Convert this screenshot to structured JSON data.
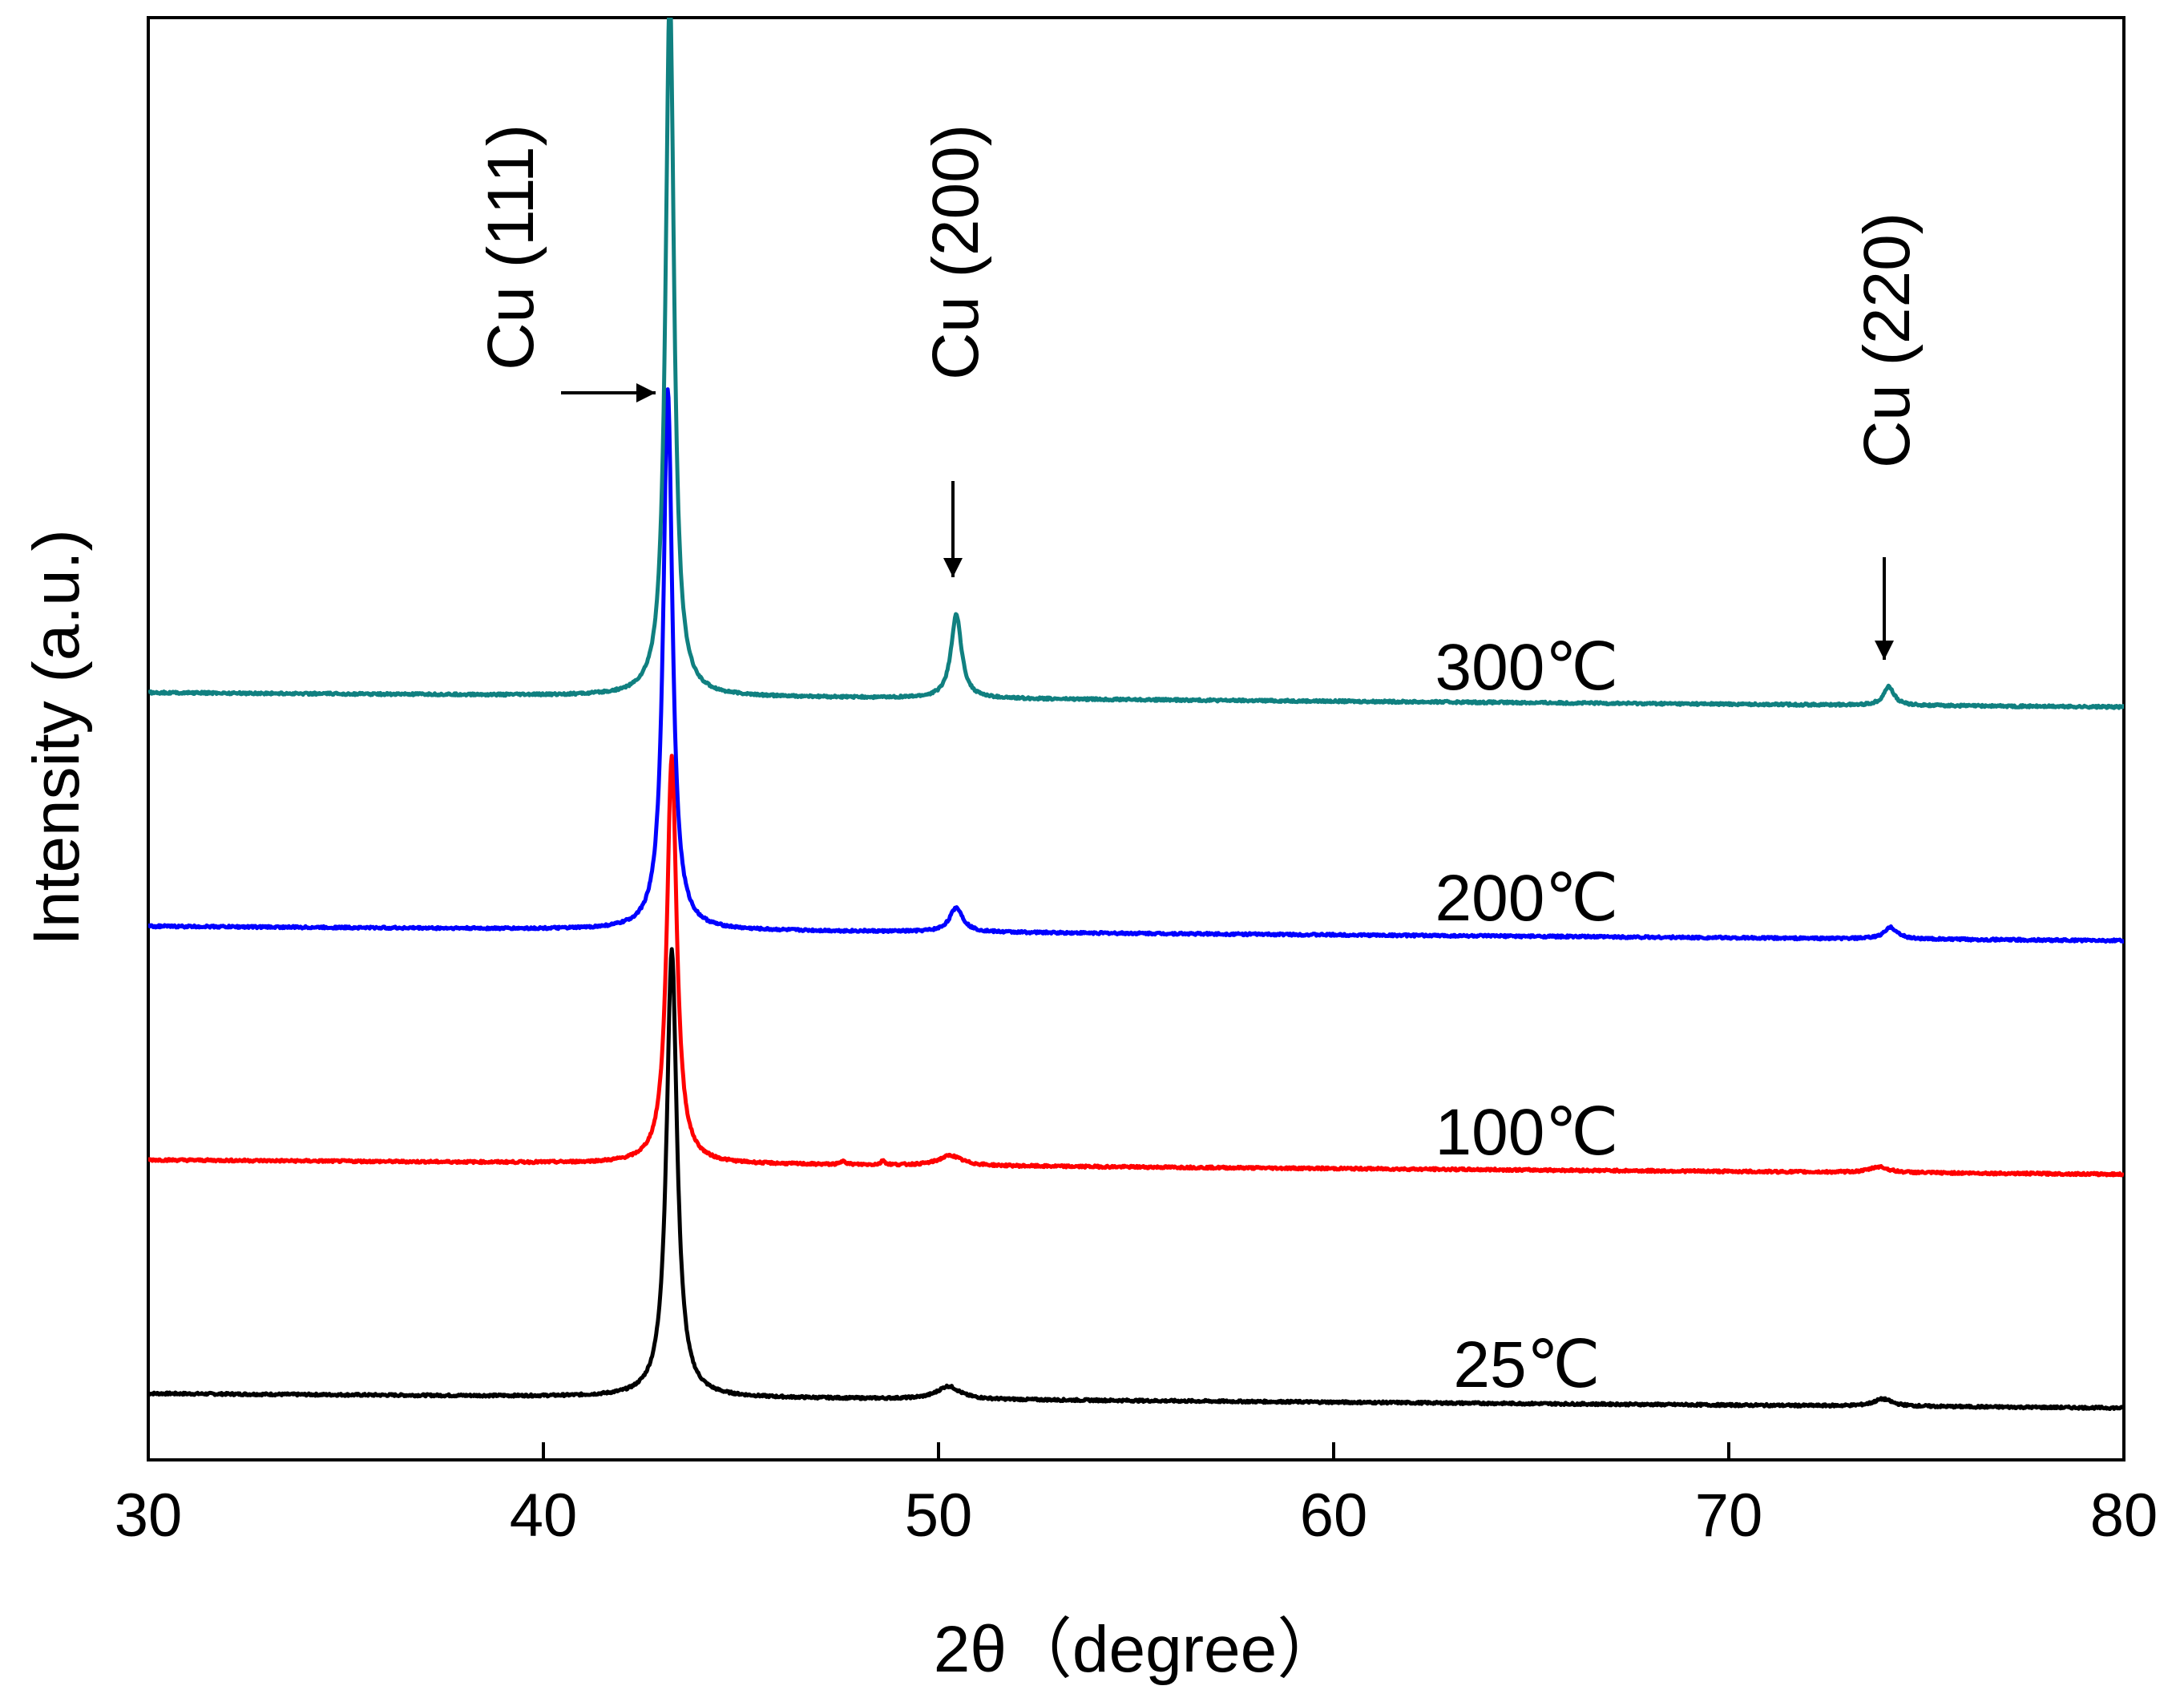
{
  "chart_data": {
    "type": "line",
    "title": "",
    "xlabel": "2θ（degree）",
    "ylabel": "Intensity (a.u.)",
    "xlim": [
      30,
      80
    ],
    "ylim": [
      0,
      1
    ],
    "x_ticks": [
      30,
      40,
      50,
      60,
      70,
      80
    ],
    "x_tick_labels": [
      "30",
      "40",
      "50",
      "60",
      "70",
      "80"
    ],
    "series": [
      {
        "name": "25℃",
        "color": "#000000",
        "baseline_start": 0.046,
        "baseline_end": 0.036,
        "peaks": [
          {
            "x": 43.25,
            "height": 0.31,
            "width": 0.16
          },
          {
            "x": 50.25,
            "height": 0.009,
            "width": 0.35
          },
          {
            "x": 73.9,
            "height": 0.005,
            "width": 0.28
          }
        ]
      },
      {
        "name": "100℃",
        "color": "#ff0000",
        "baseline_start": 0.208,
        "baseline_end": 0.198,
        "peaks": [
          {
            "x": 43.25,
            "height": 0.283,
            "width": 0.15
          },
          {
            "x": 50.3,
            "height": 0.007,
            "width": 0.35
          },
          {
            "x": 47.6,
            "height": 0.003,
            "width": 0.06
          },
          {
            "x": 48.6,
            "height": 0.003,
            "width": 0.06
          },
          {
            "x": 73.8,
            "height": 0.004,
            "width": 0.28
          }
        ]
      },
      {
        "name": "200℃",
        "color": "#0000ff",
        "baseline_start": 0.37,
        "baseline_end": 0.36,
        "peaks": [
          {
            "x": 43.15,
            "height": 0.375,
            "width": 0.14
          },
          {
            "x": 50.45,
            "height": 0.017,
            "width": 0.2
          },
          {
            "x": 74.1,
            "height": 0.008,
            "width": 0.2
          }
        ]
      },
      {
        "name": "300℃",
        "color": "#108080",
        "baseline_start": 0.532,
        "baseline_end": 0.522,
        "peaks": [
          {
            "x": 43.2,
            "height": 0.49,
            "width": 0.13
          },
          {
            "x": 50.45,
            "height": 0.058,
            "width": 0.16
          },
          {
            "x": 74.05,
            "height": 0.013,
            "width": 0.16
          }
        ]
      }
    ],
    "annotations": [
      {
        "text": "Cu (111)",
        "x": 43.2
      },
      {
        "text": "Cu (200)",
        "x": 50.45
      },
      {
        "text": "Cu (220)",
        "x": 74.05
      }
    ]
  }
}
